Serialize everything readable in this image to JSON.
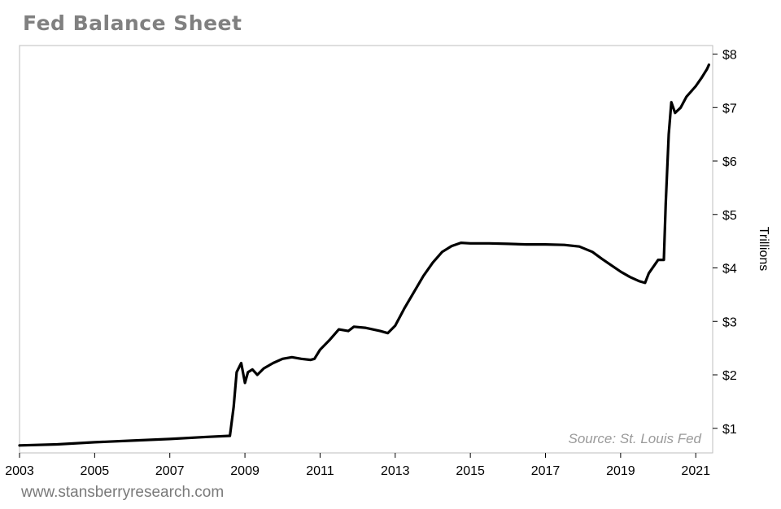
{
  "title": "Fed Balance Sheet",
  "footer": "www.stansberryresearch.com",
  "chart_data": {
    "type": "line",
    "title": "Fed Balance Sheet",
    "xlabel": "",
    "ylabel": "Trillions",
    "source_note": "Source: St. Louis Fed",
    "xlim": [
      2003,
      2021.45
    ],
    "ylim": [
      0.54,
      8.16
    ],
    "x_ticks": [
      2003,
      2005,
      2007,
      2009,
      2011,
      2013,
      2015,
      2017,
      2019,
      2021
    ],
    "x_tick_labels": [
      "2003",
      "2005",
      "2007",
      "2009",
      "2011",
      "2013",
      "2015",
      "2017",
      "2019",
      "2021"
    ],
    "y_ticks": [
      1,
      2,
      3,
      4,
      5,
      6,
      7,
      8
    ],
    "y_tick_labels": [
      "$1",
      "$2",
      "$3",
      "$4",
      "$5",
      "$6",
      "$7",
      "$8"
    ],
    "y_axis_position": "right",
    "grid": false,
    "line_color": "#000000",
    "series": [
      {
        "values_x": [
          2003.0,
          2004.0,
          2005.0,
          2006.0,
          2007.0,
          2008.0,
          2008.6,
          2008.7,
          2008.78,
          2008.9,
          2009.0,
          2009.08,
          2009.2,
          2009.33,
          2009.5,
          2009.75,
          2010.0,
          2010.25,
          2010.5,
          2010.75,
          2010.85,
          2011.0,
          2011.25,
          2011.5,
          2011.75,
          2011.9,
          2012.2,
          2012.6,
          2012.8,
          2013.0,
          2013.25,
          2013.5,
          2013.75,
          2014.0,
          2014.25,
          2014.5,
          2014.75,
          2015.0,
          2015.5,
          2016.0,
          2016.5,
          2017.0,
          2017.5,
          2017.9,
          2018.25,
          2018.5,
          2018.75,
          2019.0,
          2019.25,
          2019.5,
          2019.65,
          2019.75,
          2019.9,
          2020.0,
          2020.15,
          2020.2,
          2020.28,
          2020.35,
          2020.45,
          2020.6,
          2020.75,
          2021.0,
          2021.15,
          2021.3,
          2021.35
        ],
        "values_y": [
          0.68,
          0.7,
          0.74,
          0.77,
          0.8,
          0.84,
          0.86,
          1.4,
          2.05,
          2.22,
          1.85,
          2.05,
          2.1,
          2.0,
          2.12,
          2.22,
          2.3,
          2.33,
          2.3,
          2.28,
          2.3,
          2.47,
          2.65,
          2.85,
          2.82,
          2.9,
          2.88,
          2.82,
          2.78,
          2.92,
          3.25,
          3.55,
          3.85,
          4.1,
          4.3,
          4.41,
          4.47,
          4.46,
          4.46,
          4.45,
          4.44,
          4.44,
          4.43,
          4.4,
          4.3,
          4.17,
          4.05,
          3.93,
          3.83,
          3.75,
          3.72,
          3.9,
          4.05,
          4.15,
          4.15,
          5.2,
          6.5,
          7.1,
          6.9,
          7.0,
          7.2,
          7.4,
          7.55,
          7.72,
          7.8
        ]
      }
    ]
  }
}
